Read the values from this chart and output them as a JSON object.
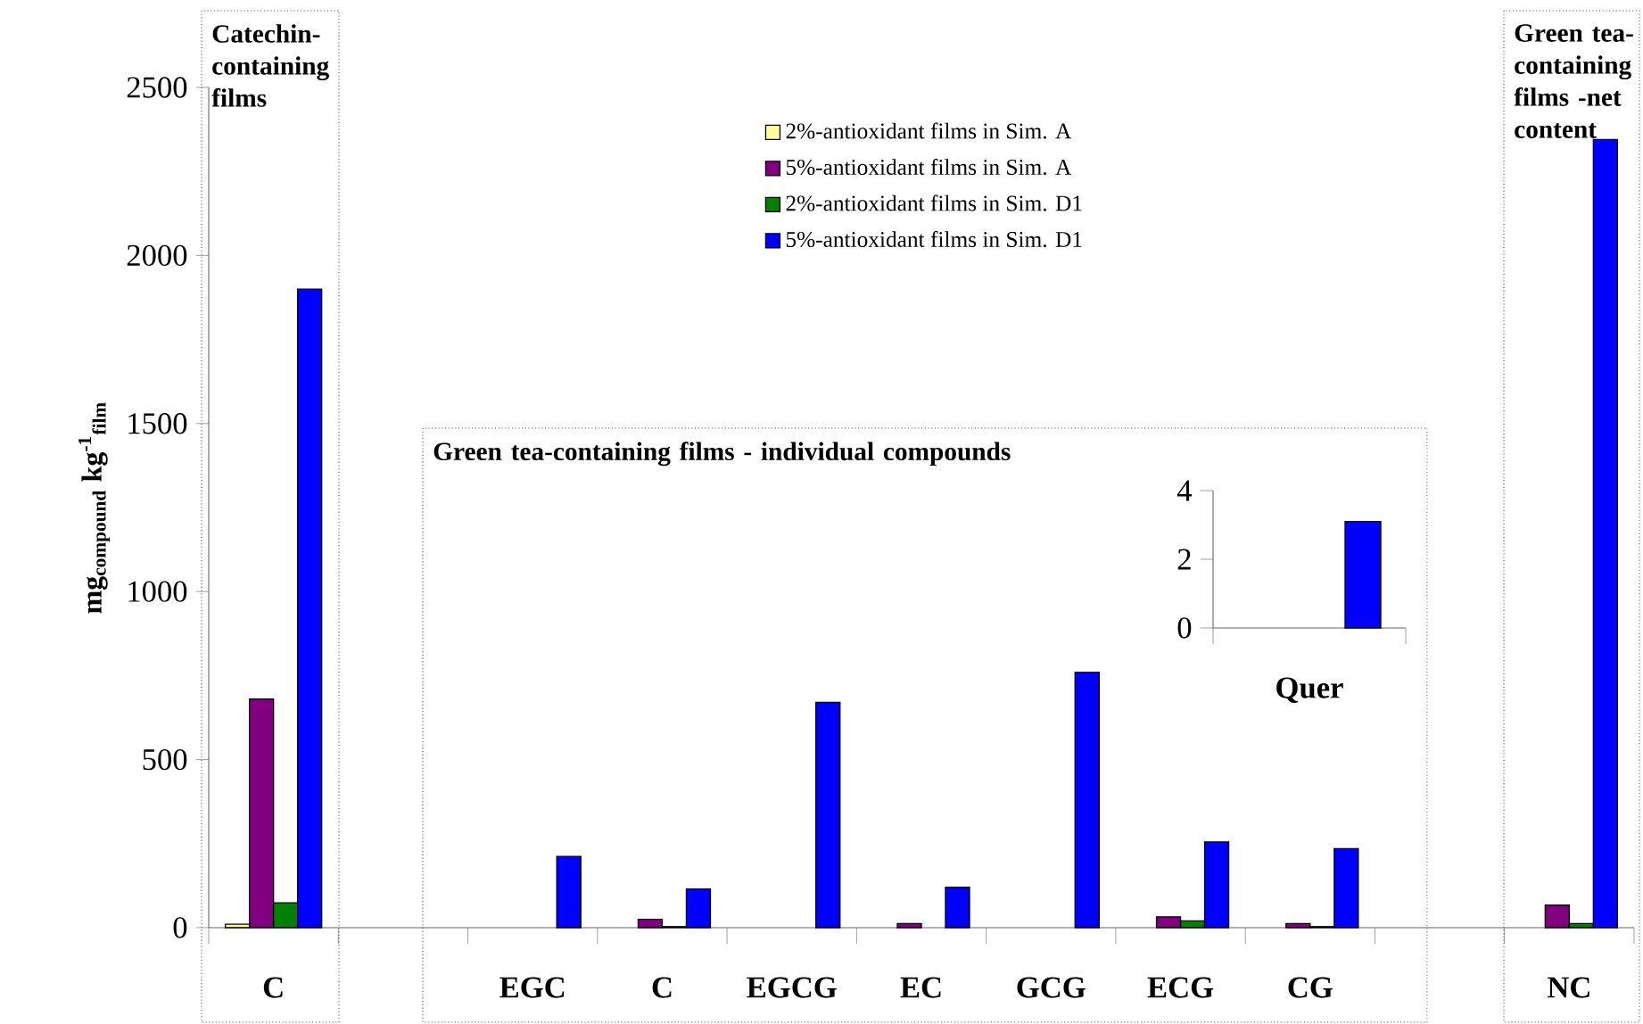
{
  "chart_data": [
    {
      "type": "bar",
      "ylabel": "**mg$_{compound}$ kg$^{-1}$$_{film}$**",
      "categories": [
        "C",
        null,
        "EGC",
        "C",
        "EGCG",
        "EC",
        "GCG",
        "ECG",
        "CG",
        null,
        "NC"
      ],
      "series": [
        {
          "name": "2%-antioxidant films in Sim. A",
          "color": "#ffff99",
          "values": [
            10,
            null,
            null,
            null,
            null,
            null,
            null,
            null,
            null,
            null,
            null
          ]
        },
        {
          "name": "5%-antioxidant films in Sim. A",
          "color": "#800080",
          "values": [
            680,
            null,
            null,
            25,
            null,
            12,
            null,
            32,
            12,
            null,
            67
          ]
        },
        {
          "name": "2%-antioxidant films in Sim. D1",
          "color": "#008000",
          "values": [
            74,
            null,
            null,
            3,
            null,
            null,
            null,
            20,
            3,
            null,
            12
          ]
        },
        {
          "name": "5%-antioxidant films in Sim. D1",
          "color": "#0000ff",
          "values": [
            1900,
            null,
            212,
            115,
            670,
            120,
            760,
            255,
            235,
            null,
            2345
          ]
        }
      ],
      "ylim": [
        0,
        2500
      ],
      "yticks": [
        0,
        500,
        1000,
        1500,
        2000,
        2500
      ],
      "legend": "top",
      "annotations": [
        "Catechin-containing films",
        "Green tea-containing films - individual compounds",
        "Green tea-containing films -net content"
      ]
    },
    {
      "type": "bar",
      "categories": [
        "Quer"
      ],
      "series": [
        {
          "color": "#ffff99",
          "values": [
            null
          ]
        },
        {
          "color": "#800080",
          "values": [
            null
          ]
        },
        {
          "color": "#008000",
          "values": [
            null
          ]
        },
        {
          "color": "#0000ff",
          "values": [
            3.1
          ]
        }
      ],
      "ylim": [
        0,
        4
      ],
      "yticks": [
        0,
        2,
        4
      ]
    }
  ]
}
